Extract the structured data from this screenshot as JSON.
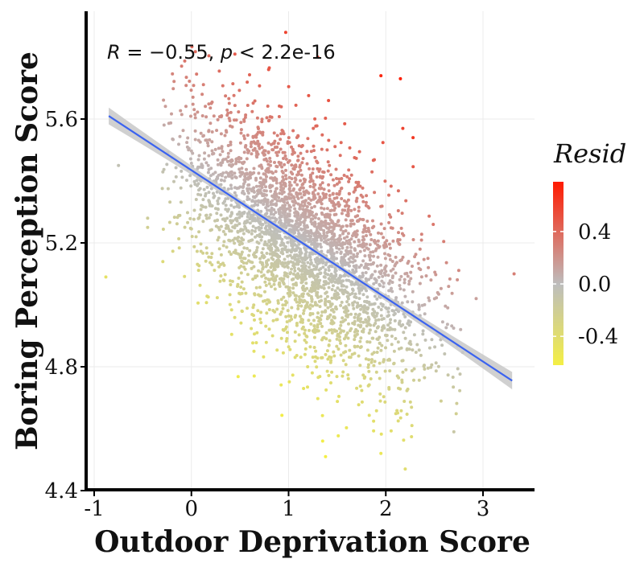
{
  "chart_data": {
    "type": "scatter",
    "xlabel": "Outdoor Deprivation Score",
    "ylabel": "Boring Perception Score",
    "xlim": [
      -1.05,
      3.5
    ],
    "ylim": [
      4.4,
      5.95
    ],
    "x_ticks": [
      -1,
      0,
      1,
      2,
      3
    ],
    "y_ticks": [
      4.4,
      4.8,
      5.2,
      5.6
    ],
    "grid": true,
    "annotation": {
      "r_symbol": "R",
      "r_text": " = −0.55, ",
      "p_symbol": "p",
      "p_text": " < 2.2e-16"
    },
    "regression": {
      "x_start": -0.85,
      "y_start": 5.61,
      "x_end": 3.3,
      "y_end": 4.755,
      "color": "#3b63f0",
      "band_color": "#c8c8c8"
    },
    "color_legend": {
      "title": "Resid",
      "ticks": [
        "0.4",
        "0.0",
        "-0.4"
      ],
      "tick_values": [
        0.4,
        0.0,
        -0.4
      ],
      "range": [
        -0.62,
        0.78
      ],
      "colors": [
        "#f4ef44",
        "#bdbdbd",
        "#ff1a00"
      ]
    },
    "n_points": 3200,
    "outlier_points": [
      {
        "x": -0.88,
        "y": 5.09,
        "r": -0.45
      },
      {
        "x": -0.75,
        "y": 5.45,
        "r": -0.05
      },
      {
        "x": -0.45,
        "y": 5.28,
        "r": -0.18
      },
      {
        "x": -0.45,
        "y": 5.25,
        "r": -0.22
      },
      {
        "x": 0.97,
        "y": 5.88,
        "r": 0.58
      },
      {
        "x": 1.3,
        "y": 5.8,
        "r": 0.58
      },
      {
        "x": 1.95,
        "y": 5.74,
        "r": 0.72
      },
      {
        "x": 2.15,
        "y": 5.73,
        "r": 0.76
      },
      {
        "x": 2.28,
        "y": 5.54,
        "r": 0.64
      },
      {
        "x": 2.93,
        "y": 5.02,
        "r": 0.14
      },
      {
        "x": 3.32,
        "y": 5.1,
        "r": 0.3
      },
      {
        "x": 1.35,
        "y": 4.56,
        "r": -0.6
      },
      {
        "x": 1.38,
        "y": 4.51,
        "r": -0.62
      },
      {
        "x": 2.2,
        "y": 4.47,
        "r": -0.4
      },
      {
        "x": 1.95,
        "y": 4.52,
        "r": -0.52
      },
      {
        "x": 2.7,
        "y": 4.59,
        "r": -0.12
      }
    ]
  }
}
